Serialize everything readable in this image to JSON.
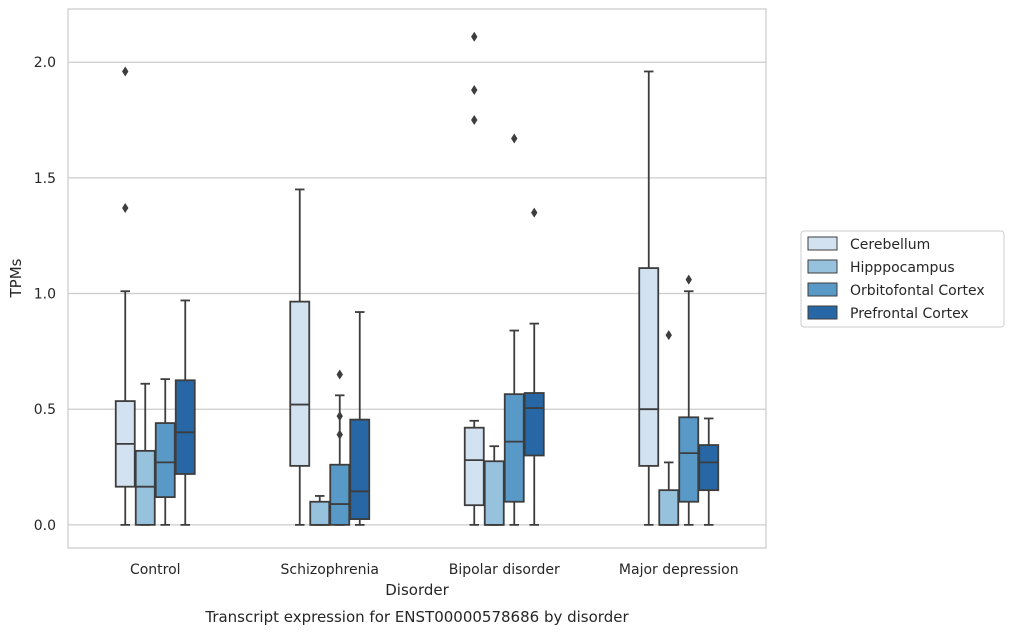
{
  "chart_data": {
    "type": "box",
    "title": "",
    "caption": "Transcript expression for ENST00000578686 by disorder",
    "xlabel": "Disorder",
    "ylabel": "TPMs",
    "ylim": [
      -0.1,
      2.23
    ],
    "yticks": [
      "0.0",
      "0.5",
      "1.0",
      "1.5",
      "2.0"
    ],
    "grid": "horizontal",
    "legend_position": "right",
    "categories": [
      "Control",
      "Schizophrenia",
      "Bipolar disorder",
      "Major depression"
    ],
    "series": [
      {
        "name": "Cerebellum",
        "color": "#d3e2f1",
        "boxes": [
          {
            "whislo": 0.0,
            "q1": 0.165,
            "med": 0.35,
            "q3": 0.535,
            "whishi": 1.01,
            "fliers": [
              1.37,
              1.96
            ]
          },
          {
            "whislo": 0.0,
            "q1": 0.255,
            "med": 0.52,
            "q3": 0.965,
            "whishi": 1.45,
            "fliers": []
          },
          {
            "whislo": 0.0,
            "q1": 0.085,
            "med": 0.28,
            "q3": 0.42,
            "whishi": 0.45,
            "fliers": [
              1.75,
              1.88,
              2.11
            ]
          },
          {
            "whislo": 0.0,
            "q1": 0.255,
            "med": 0.5,
            "q3": 1.11,
            "whishi": 1.96,
            "fliers": []
          }
        ]
      },
      {
        "name": "Hipppocampus",
        "color": "#97c2de",
        "boxes": [
          {
            "whislo": 0.0,
            "q1": 0.0,
            "med": 0.165,
            "q3": 0.32,
            "whishi": 0.61,
            "fliers": []
          },
          {
            "whislo": 0.0,
            "q1": 0.0,
            "med": 0.0,
            "q3": 0.1,
            "whishi": 0.125,
            "fliers": []
          },
          {
            "whislo": 0.0,
            "q1": 0.0,
            "med": 0.0,
            "q3": 0.275,
            "whishi": 0.34,
            "fliers": []
          },
          {
            "whislo": 0.0,
            "q1": 0.0,
            "med": 0.0,
            "q3": 0.15,
            "whishi": 0.27,
            "fliers": [
              0.82
            ]
          }
        ]
      },
      {
        "name": "Orbitofontal Cortex",
        "color": "#5899c8",
        "boxes": [
          {
            "whislo": 0.0,
            "q1": 0.12,
            "med": 0.27,
            "q3": 0.44,
            "whishi": 0.63,
            "fliers": []
          },
          {
            "whislo": 0.0,
            "q1": 0.0,
            "med": 0.09,
            "q3": 0.26,
            "whishi": 0.56,
            "fliers": [
              0.39,
              0.47,
              0.65
            ]
          },
          {
            "whislo": 0.0,
            "q1": 0.1,
            "med": 0.36,
            "q3": 0.565,
            "whishi": 0.84,
            "fliers": [
              1.67
            ]
          },
          {
            "whislo": 0.0,
            "q1": 0.1,
            "med": 0.31,
            "q3": 0.465,
            "whishi": 1.01,
            "fliers": [
              1.06
            ]
          }
        ]
      },
      {
        "name": "Prefrontal Cortex",
        "color": "#2767a6",
        "boxes": [
          {
            "whislo": 0.0,
            "q1": 0.22,
            "med": 0.4,
            "q3": 0.625,
            "whishi": 0.97,
            "fliers": []
          },
          {
            "whislo": 0.0,
            "q1": 0.025,
            "med": 0.145,
            "q3": 0.455,
            "whishi": 0.92,
            "fliers": []
          },
          {
            "whislo": 0.0,
            "q1": 0.3,
            "med": 0.505,
            "q3": 0.57,
            "whishi": 0.87,
            "fliers": [
              1.35
            ]
          },
          {
            "whislo": 0.0,
            "q1": 0.15,
            "med": 0.27,
            "q3": 0.345,
            "whishi": 0.46,
            "fliers": []
          }
        ]
      }
    ]
  },
  "colors": {
    "outline": "#3d3d3d",
    "grid": "#cccccc",
    "frame": "#cccccc"
  }
}
